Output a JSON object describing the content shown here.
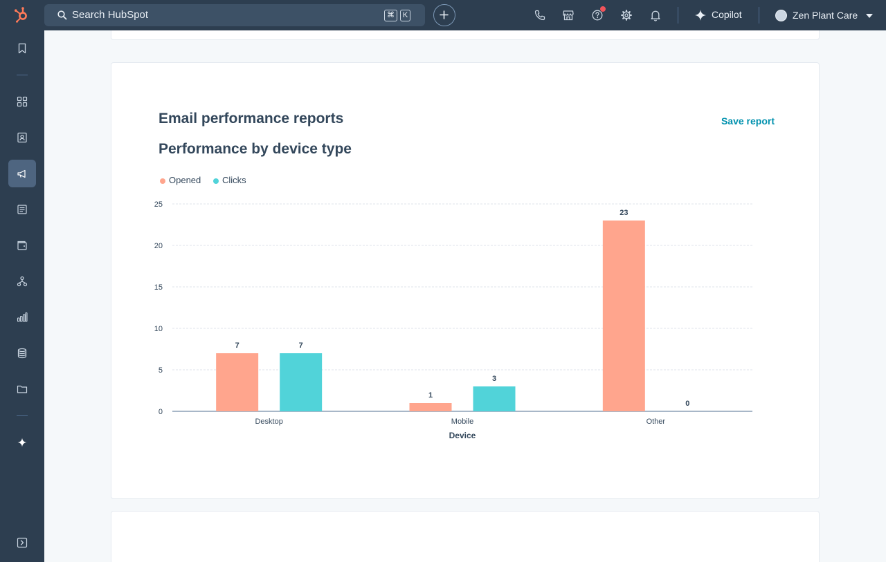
{
  "topbar": {
    "search_placeholder": "Search HubSpot",
    "shortcut_key_1": "⌘",
    "shortcut_key_2": "K",
    "copilot_label": "Copilot",
    "account_name": "Zen Plant Care"
  },
  "report": {
    "section_title": "Email performance reports",
    "save_label": "Save report",
    "chart_title": "Performance by device type"
  },
  "colors": {
    "opened": "#ffa58d",
    "clicks": "#51d3d9",
    "nav_bg": "#2d3e50",
    "link": "#0091ae"
  },
  "chart_data": {
    "type": "bar",
    "title": "Performance by device type",
    "xlabel": "Device",
    "ylabel": "",
    "categories": [
      "Desktop",
      "Mobile",
      "Other"
    ],
    "series": [
      {
        "name": "Opened",
        "values": [
          7,
          1,
          23
        ],
        "color": "#ffa58d"
      },
      {
        "name": "Clicks",
        "values": [
          7,
          3,
          0
        ],
        "color": "#51d3d9"
      }
    ],
    "ylim": [
      0,
      25
    ],
    "yticks": [
      0,
      5,
      10,
      15,
      20,
      25
    ],
    "grid": true,
    "legend_position": "top-left",
    "data_labels": true
  }
}
